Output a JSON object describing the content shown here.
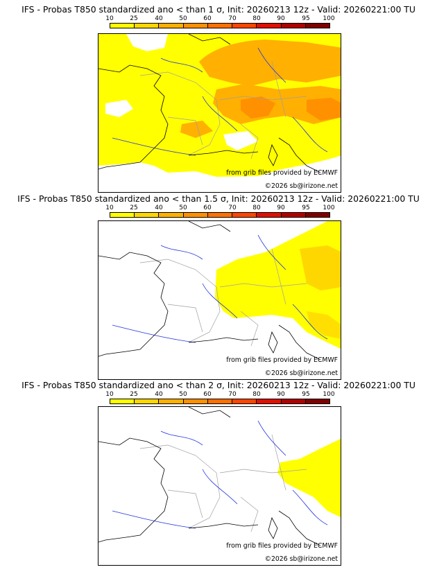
{
  "panels": [
    {
      "title": "IFS - Probas T850  standardized ano < than 1 σ, Init: 20260213 12z - Valid: 20260221:00 TU"
    },
    {
      "title": "IFS - Probas T850  standardized ano < than 1.5 σ, Init: 20260213 12z - Valid: 20260221:00 TU"
    },
    {
      "title": "IFS - Probas T850  standardized ano < than 2 σ, Init: 20260213 12z - Valid: 20260221:00 TU"
    }
  ],
  "scale": {
    "ticks": [
      "10",
      "25",
      "40",
      "50",
      "60",
      "70",
      "80",
      "90",
      "95",
      "100"
    ],
    "colors": [
      "#ffff00",
      "#ffd700",
      "#ffb000",
      "#ff9000",
      "#ff7000",
      "#ff4500",
      "#e01000",
      "#b00000",
      "#800000"
    ]
  },
  "credit_source": "from grib files provided by ECMWF",
  "credit_copyright": "©2026 sb@irizone.net",
  "map_colors": {
    "coast": "#000000",
    "rivers": "#2030e0",
    "borders": "#a0a0a0"
  }
}
